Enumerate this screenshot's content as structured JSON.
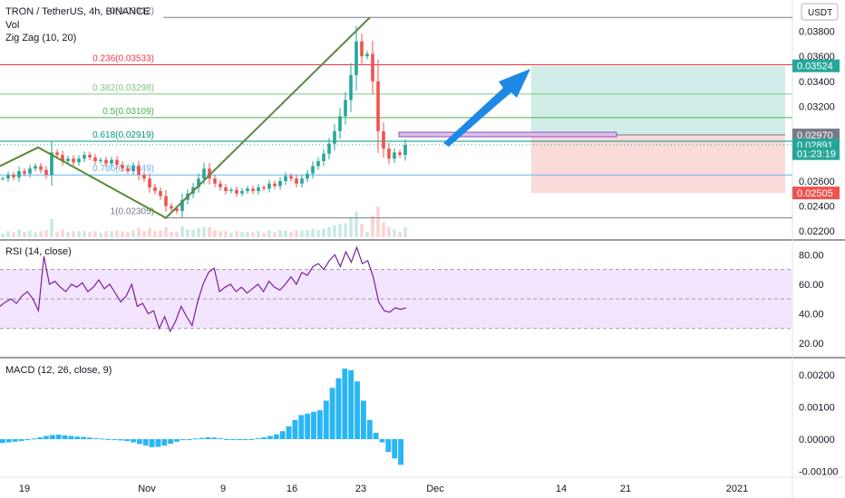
{
  "header": {
    "symbol_title": "TRON / TetherUS, 4h, BINANCE",
    "vol_label": "Vol",
    "zigzag_label": "Zig Zag (10, 20)",
    "currency_label": "USDT"
  },
  "colors": {
    "up": "#26a69a",
    "down": "#ef5350",
    "zigzag": "#558b2f",
    "arrow": "#1e88e5",
    "rsi_line": "#7b1fa2",
    "rsi_band": "#f3e5ff",
    "macd_hist": "#29b6f6",
    "profit_zone": "#d1ede8",
    "loss_zone": "#fbdada"
  },
  "chart_data": [
    {
      "type": "candlestick",
      "pane": "price",
      "title": "TRON / TetherUS, 4h, BINANCE",
      "x_ticks": [
        "19",
        "Nov",
        "9",
        "16",
        "23",
        "Dec",
        "14",
        "21",
        "2021"
      ],
      "y_ticks": [
        "0.03800",
        "0.03600",
        "0.03400",
        "0.03200",
        "0.02600",
        "0.02400",
        "0.02200"
      ],
      "y_range": [
        0.0215,
        0.0395
      ],
      "fib_levels": [
        {
          "label": "0(0.03912)",
          "value": 0.03912,
          "color": "#787b86"
        },
        {
          "label": "0.236(0.03533)",
          "value": 0.03533,
          "color": "#f23645"
        },
        {
          "label": "0.382(0.03298)",
          "value": 0.03298,
          "color": "#81c784"
        },
        {
          "label": "0.5(0.03109)",
          "value": 0.03109,
          "color": "#4caf50"
        },
        {
          "label": "0.618(0.02919)",
          "value": 0.02919,
          "color": "#009688"
        },
        {
          "label": "0.786(0.02649)",
          "value": 0.02649,
          "color": "#64b5f6"
        },
        {
          "label": "1(0.02305)",
          "value": 0.02305,
          "color": "#787b86"
        }
      ],
      "price_tags": [
        {
          "text": "0.03524",
          "value": 0.03524,
          "bg": "#26a69a"
        },
        {
          "text": "0.02970",
          "value": 0.0297,
          "bg": "#787b86"
        },
        {
          "text": "0.02891",
          "value": 0.02891,
          "bg": "#26a69a"
        },
        {
          "text": "01:23:19",
          "value": 0.0282,
          "bg": "#26a69a"
        },
        {
          "text": "0.02505",
          "value": 0.02505,
          "bg": "#ef5350"
        }
      ],
      "zigzag": [
        {
          "date": "Oct 15",
          "price": 0.0272
        },
        {
          "date": "Oct 19",
          "price": 0.0287
        },
        {
          "date": "Nov 3",
          "price": 0.02305
        },
        {
          "date": "Nov 23",
          "price": 0.03912
        }
      ],
      "long_position": {
        "entry": 0.0297,
        "target": 0.03524,
        "stop": 0.02505
      },
      "close_series": [
        0.0262,
        0.0265,
        0.0263,
        0.0268,
        0.0266,
        0.027,
        0.0272,
        0.0269,
        0.0265,
        0.0283,
        0.0281,
        0.0276,
        0.0278,
        0.0275,
        0.0278,
        0.0281,
        0.0279,
        0.0276,
        0.0277,
        0.0274,
        0.0277,
        0.0273,
        0.027,
        0.0268,
        0.0272,
        0.0265,
        0.0262,
        0.0255,
        0.0252,
        0.0248,
        0.024,
        0.0238,
        0.0236,
        0.0245,
        0.025,
        0.0255,
        0.0262,
        0.027,
        0.0262,
        0.0258,
        0.0255,
        0.0252,
        0.0253,
        0.025,
        0.0252,
        0.0254,
        0.0252,
        0.0255,
        0.0254,
        0.0258,
        0.0256,
        0.026,
        0.0264,
        0.0262,
        0.0258,
        0.0262,
        0.0266,
        0.0272,
        0.0276,
        0.0282,
        0.029,
        0.03,
        0.0312,
        0.0325,
        0.0345,
        0.0372,
        0.036,
        0.0362,
        0.034,
        0.03,
        0.0286,
        0.0278,
        0.0283,
        0.0281,
        0.0289
      ]
    },
    {
      "type": "line",
      "pane": "rsi",
      "title": "RSI (14, close)",
      "y_ticks": [
        "80.00",
        "60.00",
        "40.00",
        "20.00"
      ],
      "y_range": [
        12,
        87
      ],
      "bands": [
        70,
        50,
        30
      ],
      "values": [
        45,
        48,
        50,
        47,
        52,
        55,
        50,
        42,
        79,
        60,
        62,
        58,
        55,
        60,
        58,
        61,
        55,
        58,
        63,
        57,
        60,
        54,
        48,
        52,
        60,
        45,
        47,
        40,
        42,
        30,
        38,
        28,
        35,
        45,
        38,
        32,
        48,
        60,
        68,
        71,
        55,
        58,
        60,
        55,
        58,
        54,
        57,
        60,
        55,
        62,
        58,
        56,
        60,
        65,
        60,
        68,
        66,
        72,
        74,
        70,
        76,
        80,
        72,
        82,
        75,
        85,
        74,
        76,
        65,
        48,
        42,
        41,
        44,
        43,
        44
      ]
    },
    {
      "type": "bar",
      "pane": "macd",
      "title": "MACD (12, 26, close, 9)",
      "y_ticks": [
        "0.00200",
        "0.00100",
        "0.00000",
        "-0.00100"
      ],
      "y_range": [
        -0.0011,
        0.0024
      ],
      "values": [
        -0.00012,
        -0.0001,
        -8e-05,
        -6e-05,
        -3e-05,
        2e-05,
        6e-05,
        0.0001,
        0.00013,
        0.00014,
        0.00012,
        0.0001,
        8e-05,
        7e-05,
        5e-05,
        3e-05,
        2e-05,
        0.0,
        -2e-05,
        -4e-05,
        -6e-05,
        -0.0001,
        -0.00015,
        -0.0002,
        -0.00025,
        -0.00024,
        -0.0002,
        -0.00014,
        -8e-05,
        -3e-05,
        0.0,
        2e-05,
        4e-05,
        6e-05,
        5e-05,
        3e-05,
        0.0,
        -2e-05,
        -3e-05,
        -2e-05,
        0.0,
        3e-05,
        6e-05,
        0.0001,
        0.00015,
        0.00025,
        0.0004,
        0.0006,
        0.00075,
        0.0008,
        0.00085,
        0.0009,
        0.0012,
        0.0016,
        0.0019,
        0.0022,
        0.00215,
        0.0018,
        0.0012,
        0.0006,
        0.0002,
        -0.0001,
        -0.0004,
        -0.0006,
        -0.0008
      ]
    }
  ]
}
